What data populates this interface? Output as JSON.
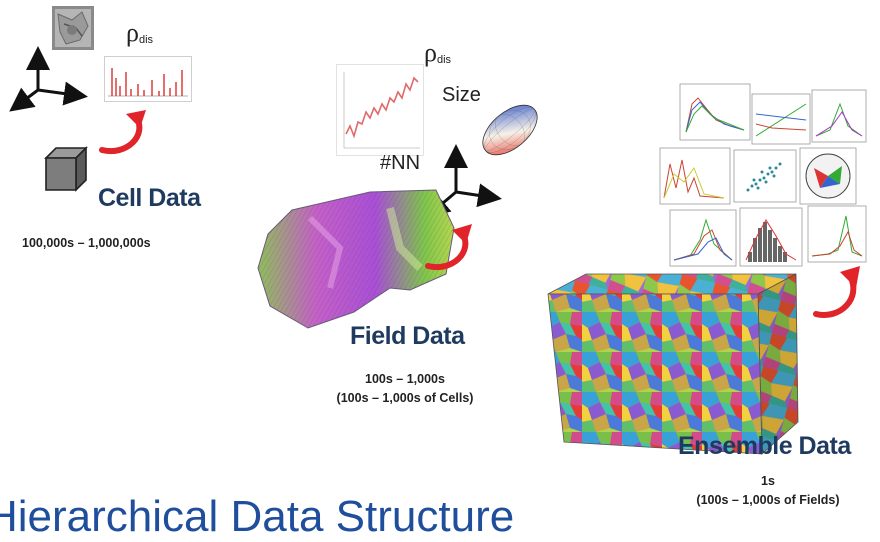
{
  "heading": "Hierarchical Data Structure",
  "cell": {
    "rho_symbol": "ρ",
    "rho_sub": "dis",
    "title": "Cell Data",
    "count": "100,000s – 1,000,000s"
  },
  "field": {
    "rho_symbol": "ρ",
    "rho_sub": "dis",
    "size_label": "Size",
    "nn_label": "#NN",
    "title": "Field Data",
    "count_line1": "100s – 1,000s",
    "count_line2": "(100s – 1,000s of Cells)"
  },
  "ensemble": {
    "title": "Ensemble Data",
    "count_line1": "1s",
    "count_line2": "(100s – 1,000s of Fields)"
  },
  "colors": {
    "arrow": "#e0242a",
    "title": "#1f3a5f",
    "heading": "#1f4e9c"
  }
}
